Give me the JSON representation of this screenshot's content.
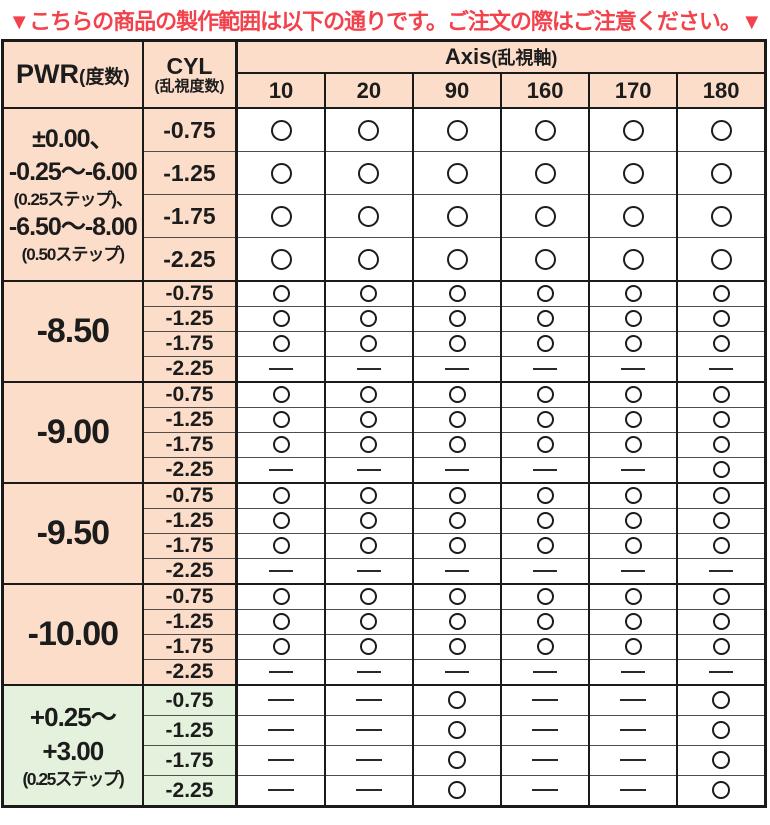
{
  "notice": "▼こちらの商品の製作範囲は以下の通りです。ご注文の際はご注意ください。▼",
  "colors": {
    "accent_red": "#f2424c",
    "row_peach": "#fbddc9",
    "row_green": "#e3f1dd",
    "border_dark": "#1a1a1a"
  },
  "table": {
    "pwr_header_main": "PWR",
    "pwr_header_sub": "(度数)",
    "cyl_header_line1": "CYL",
    "cyl_header_line2": "(乱視度数)",
    "axis_header_main": "Axis",
    "axis_header_sub": "(乱視軸)",
    "axis_values": [
      "10",
      "20",
      "90",
      "160",
      "170",
      "180"
    ],
    "symbols": {
      "available": "○",
      "unavailable": "—"
    },
    "groups": [
      {
        "theme": "peach",
        "size": "tall",
        "pwr_lines": [
          {
            "text": "±0.00、",
            "small": false
          },
          {
            "text": "-0.25〜-6.00",
            "small": false
          },
          {
            "text": "(0.25ステップ)、",
            "small": true
          },
          {
            "text": "-6.50〜-8.00",
            "small": false
          },
          {
            "text": "(0.50ステップ)",
            "small": true
          }
        ],
        "rows": [
          {
            "cyl": "-0.75",
            "marks": [
              "○",
              "○",
              "○",
              "○",
              "○",
              "○"
            ]
          },
          {
            "cyl": "-1.25",
            "marks": [
              "○",
              "○",
              "○",
              "○",
              "○",
              "○"
            ]
          },
          {
            "cyl": "-1.75",
            "marks": [
              "○",
              "○",
              "○",
              "○",
              "○",
              "○"
            ]
          },
          {
            "cyl": "-2.25",
            "marks": [
              "○",
              "○",
              "○",
              "○",
              "○",
              "○"
            ]
          }
        ]
      },
      {
        "theme": "peach",
        "size": "compact",
        "pwr_lines": [
          {
            "text": "-8.50",
            "small": false
          }
        ],
        "rows": [
          {
            "cyl": "-0.75",
            "marks": [
              "○",
              "○",
              "○",
              "○",
              "○",
              "○"
            ]
          },
          {
            "cyl": "-1.25",
            "marks": [
              "○",
              "○",
              "○",
              "○",
              "○",
              "○"
            ]
          },
          {
            "cyl": "-1.75",
            "marks": [
              "○",
              "○",
              "○",
              "○",
              "○",
              "○"
            ]
          },
          {
            "cyl": "-2.25",
            "marks": [
              "—",
              "—",
              "—",
              "—",
              "—",
              "—"
            ]
          }
        ]
      },
      {
        "theme": "peach",
        "size": "compact",
        "pwr_lines": [
          {
            "text": "-9.00",
            "small": false
          }
        ],
        "rows": [
          {
            "cyl": "-0.75",
            "marks": [
              "○",
              "○",
              "○",
              "○",
              "○",
              "○"
            ]
          },
          {
            "cyl": "-1.25",
            "marks": [
              "○",
              "○",
              "○",
              "○",
              "○",
              "○"
            ]
          },
          {
            "cyl": "-1.75",
            "marks": [
              "○",
              "○",
              "○",
              "○",
              "○",
              "○"
            ]
          },
          {
            "cyl": "-2.25",
            "marks": [
              "—",
              "—",
              "—",
              "—",
              "—",
              "○"
            ]
          }
        ]
      },
      {
        "theme": "peach",
        "size": "compact",
        "pwr_lines": [
          {
            "text": "-9.50",
            "small": false
          }
        ],
        "rows": [
          {
            "cyl": "-0.75",
            "marks": [
              "○",
              "○",
              "○",
              "○",
              "○",
              "○"
            ]
          },
          {
            "cyl": "-1.25",
            "marks": [
              "○",
              "○",
              "○",
              "○",
              "○",
              "○"
            ]
          },
          {
            "cyl": "-1.75",
            "marks": [
              "○",
              "○",
              "○",
              "○",
              "○",
              "○"
            ]
          },
          {
            "cyl": "-2.25",
            "marks": [
              "—",
              "—",
              "—",
              "—",
              "—",
              "—"
            ]
          }
        ]
      },
      {
        "theme": "peach",
        "size": "compact",
        "pwr_lines": [
          {
            "text": "-10.00",
            "small": false
          }
        ],
        "rows": [
          {
            "cyl": "-0.75",
            "marks": [
              "○",
              "○",
              "○",
              "○",
              "○",
              "○"
            ]
          },
          {
            "cyl": "-1.25",
            "marks": [
              "○",
              "○",
              "○",
              "○",
              "○",
              "○"
            ]
          },
          {
            "cyl": "-1.75",
            "marks": [
              "○",
              "○",
              "○",
              "○",
              "○",
              "○"
            ]
          },
          {
            "cyl": "-2.25",
            "marks": [
              "—",
              "—",
              "—",
              "—",
              "—",
              "—"
            ]
          }
        ]
      },
      {
        "theme": "green",
        "size": "medium",
        "pwr_lines": [
          {
            "text": "+0.25〜",
            "small": false
          },
          {
            "text": "+3.00",
            "small": false
          },
          {
            "text": "(0.25ステップ)",
            "small": true
          }
        ],
        "rows": [
          {
            "cyl": "-0.75",
            "marks": [
              "—",
              "—",
              "○",
              "—",
              "—",
              "○"
            ]
          },
          {
            "cyl": "-1.25",
            "marks": [
              "—",
              "—",
              "○",
              "—",
              "—",
              "○"
            ]
          },
          {
            "cyl": "-1.75",
            "marks": [
              "—",
              "—",
              "○",
              "—",
              "—",
              "○"
            ]
          },
          {
            "cyl": "-2.25",
            "marks": [
              "—",
              "—",
              "○",
              "—",
              "—",
              "○"
            ]
          }
        ]
      }
    ]
  }
}
